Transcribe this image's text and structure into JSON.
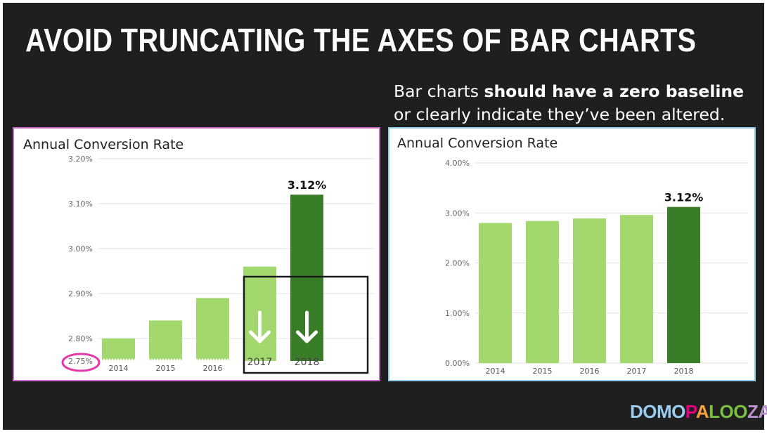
{
  "slide": {
    "title": "AVOID TRUNCATING THE AXES OF BAR CHARTS",
    "subtitle_plain_1": "Bar charts ",
    "subtitle_bold": "should have a zero baseline",
    "subtitle_plain_2": "or clearly indicate they’ve been altered.",
    "logo": {
      "part1": "DOMO",
      "part2": "P",
      "part3": "A",
      "part4": "LOO",
      "part5": "ZA"
    }
  },
  "colors": {
    "light_bar": "#a3d86f",
    "dark_bar": "#3a7d29",
    "circle": "#e23aa8",
    "box": "#1a1a1a",
    "grid": "#e2e2e2"
  },
  "chart_data": [
    {
      "type": "bar",
      "title": "Annual Conversion Rate",
      "categories": [
        "2014",
        "2015",
        "2016",
        "2017",
        "2018"
      ],
      "values": [
        2.8,
        2.84,
        2.89,
        2.96,
        3.12
      ],
      "highlight_last": true,
      "bar_label": "3.12%",
      "yticks": [
        "2.75%",
        "2.80%",
        "2.90%",
        "3.00%",
        "3.10%",
        "3.20%"
      ],
      "ytick_values": [
        2.75,
        2.8,
        2.9,
        3.0,
        3.1,
        3.2
      ],
      "ylim": [
        2.75,
        3.2
      ],
      "truncated_axis": true,
      "annotations": [
        "circled 2.75% baseline",
        "box with down arrows on 2017 and 2018"
      ]
    },
    {
      "type": "bar",
      "title": "Annual Conversion Rate",
      "categories": [
        "2014",
        "2015",
        "2016",
        "2017",
        "2018"
      ],
      "values": [
        2.8,
        2.84,
        2.89,
        2.96,
        3.12
      ],
      "highlight_last": true,
      "bar_label": "3.12%",
      "yticks": [
        "0.00%",
        "1.00%",
        "2.00%",
        "3.00%",
        "4.00%"
      ],
      "ytick_values": [
        0,
        1,
        2,
        3,
        4
      ],
      "ylim": [
        0,
        4.0
      ],
      "truncated_axis": false
    }
  ]
}
